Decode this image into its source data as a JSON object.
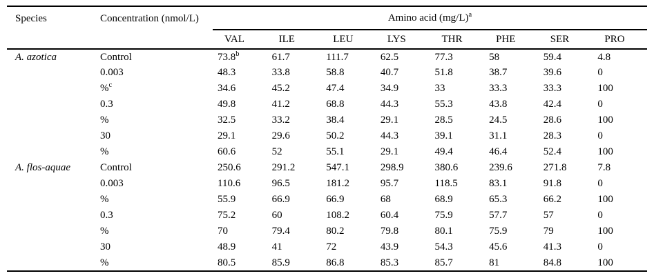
{
  "colors": {
    "background": "#ffffff",
    "text": "#000000",
    "rule": "#000000"
  },
  "table": {
    "header": {
      "species": "Species",
      "concentration": "Concentration (nmol/L)",
      "amino_acid_group": "Amino acid (mg/L)^a",
      "amino_columns": [
        "VAL",
        "ILE",
        "LEU",
        "LYS",
        "THR",
        "PHE",
        "SER",
        "PRO"
      ]
    },
    "rows": [
      {
        "species": "A. azotica",
        "concentration": "Control",
        "values": [
          "73.8^b",
          "61.7",
          "111.7",
          "62.5",
          "77.3",
          "58",
          "59.4",
          "4.8"
        ]
      },
      {
        "species": "",
        "concentration": "0.003",
        "values": [
          "48.3",
          "33.8",
          "58.8",
          "40.7",
          "51.8",
          "38.7",
          "39.6",
          "0"
        ]
      },
      {
        "species": "",
        "concentration": "%^c",
        "values": [
          "34.6",
          "45.2",
          "47.4",
          "34.9",
          "33",
          "33.3",
          "33.3",
          "100"
        ]
      },
      {
        "species": "",
        "concentration": "0.3",
        "values": [
          "49.8",
          "41.2",
          "68.8",
          "44.3",
          "55.3",
          "43.8",
          "42.4",
          "0"
        ]
      },
      {
        "species": "",
        "concentration": "%",
        "values": [
          "32.5",
          "33.2",
          "38.4",
          "29.1",
          "28.5",
          "24.5",
          "28.6",
          "100"
        ]
      },
      {
        "species": "",
        "concentration": "30",
        "values": [
          "29.1",
          "29.6",
          "50.2",
          "44.3",
          "39.1",
          "31.1",
          "28.3",
          "0"
        ]
      },
      {
        "species": "",
        "concentration": "%",
        "values": [
          "60.6",
          "52",
          "55.1",
          "29.1",
          "49.4",
          "46.4",
          "52.4",
          "100"
        ]
      },
      {
        "species": "A. flos-aquae",
        "concentration": "Control",
        "values": [
          "250.6",
          "291.2",
          "547.1",
          "298.9",
          "380.6",
          "239.6",
          "271.8",
          "7.8"
        ]
      },
      {
        "species": "",
        "concentration": "0.003",
        "values": [
          "110.6",
          "96.5",
          "181.2",
          "95.7",
          "118.5",
          "83.1",
          "91.8",
          "0"
        ]
      },
      {
        "species": "",
        "concentration": "%",
        "values": [
          "55.9",
          "66.9",
          "66.9",
          "68",
          "68.9",
          "65.3",
          "66.2",
          "100"
        ]
      },
      {
        "species": "",
        "concentration": "0.3",
        "values": [
          "75.2",
          "60",
          "108.2",
          "60.4",
          "75.9",
          "57.7",
          "57",
          "0"
        ]
      },
      {
        "species": "",
        "concentration": "%",
        "values": [
          "70",
          "79.4",
          "80.2",
          "79.8",
          "80.1",
          "75.9",
          "79",
          "100"
        ]
      },
      {
        "species": "",
        "concentration": "30",
        "values": [
          "48.9",
          "41",
          "72",
          "43.9",
          "54.3",
          "45.6",
          "41.3",
          "0"
        ]
      },
      {
        "species": "",
        "concentration": "%",
        "values": [
          "80.5",
          "85.9",
          "86.8",
          "85.3",
          "85.7",
          "81",
          "84.8",
          "100"
        ]
      }
    ]
  }
}
